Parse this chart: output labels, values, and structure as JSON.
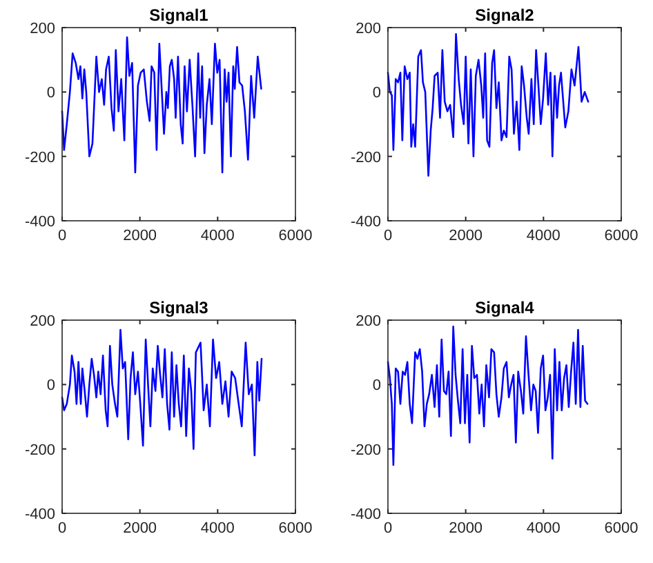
{
  "chart_data": [
    {
      "type": "line",
      "title": "Signal1",
      "xlim": [
        0,
        6000
      ],
      "xticks": [
        0,
        2000,
        4000,
        6000
      ],
      "ylim": [
        -400,
        200
      ],
      "yticks": [
        -400,
        -200,
        0,
        200
      ],
      "grid": false,
      "marker": "none",
      "line_style": "solid",
      "series": [
        {
          "color": "#0000ff",
          "x": [
            0,
            50,
            120,
            200,
            270,
            350,
            420,
            470,
            520,
            570,
            620,
            700,
            780,
            880,
            950,
            1020,
            1080,
            1130,
            1200,
            1270,
            1330,
            1380,
            1450,
            1520,
            1600,
            1670,
            1730,
            1800,
            1880,
            1950,
            2020,
            2100,
            2180,
            2250,
            2300,
            2370,
            2430,
            2500,
            2560,
            2620,
            2680,
            2720,
            2770,
            2820,
            2880,
            2920,
            2980,
            3050,
            3100,
            3150,
            3210,
            3280,
            3350,
            3420,
            3500,
            3550,
            3600,
            3660,
            3720,
            3790,
            3850,
            3930,
            3990,
            4050,
            4120,
            4180,
            4230,
            4280,
            4340,
            4400,
            4440,
            4500,
            4560,
            4630,
            4700,
            4780,
            4860,
            4940,
            5030,
            5120
          ],
          "values": [
            -60,
            -180,
            -100,
            0,
            120,
            90,
            40,
            80,
            -20,
            70,
            0,
            -200,
            -160,
            110,
            0,
            40,
            -40,
            70,
            110,
            -50,
            -120,
            130,
            -60,
            40,
            -150,
            170,
            50,
            90,
            -250,
            20,
            60,
            70,
            -30,
            -90,
            80,
            60,
            -180,
            150,
            10,
            -130,
            0,
            -50,
            80,
            100,
            40,
            -80,
            110,
            -100,
            -160,
            80,
            -60,
            100,
            -40,
            -200,
            120,
            -80,
            80,
            -190,
            -40,
            40,
            -100,
            150,
            60,
            100,
            -250,
            70,
            -30,
            60,
            -200,
            80,
            10,
            140,
            30,
            20,
            -60,
            -210,
            50,
            -80,
            110,
            10
          ]
        }
      ]
    },
    {
      "type": "line",
      "title": "Signal2",
      "xlim": [
        0,
        6000
      ],
      "xticks": [
        0,
        2000,
        4000,
        6000
      ],
      "ylim": [
        -400,
        200
      ],
      "yticks": [
        -400,
        -200,
        0,
        200
      ],
      "grid": false,
      "marker": "none",
      "line_style": "solid",
      "series": [
        {
          "color": "#0000ff",
          "x": [
            0,
            50,
            100,
            140,
            200,
            260,
            320,
            370,
            430,
            500,
            560,
            600,
            650,
            700,
            780,
            850,
            900,
            960,
            1040,
            1100,
            1150,
            1200,
            1280,
            1340,
            1400,
            1460,
            1530,
            1600,
            1680,
            1750,
            1820,
            1880,
            1950,
            2000,
            2070,
            2130,
            2200,
            2260,
            2330,
            2400,
            2450,
            2500,
            2550,
            2610,
            2680,
            2730,
            2790,
            2850,
            2920,
            2980,
            3050,
            3120,
            3180,
            3240,
            3310,
            3380,
            3440,
            3500,
            3570,
            3620,
            3690,
            3750,
            3810,
            3870,
            3930,
            3990,
            4060,
            4120,
            4180,
            4230,
            4290,
            4350,
            4400,
            4450,
            4560,
            4640,
            4720,
            4800,
            4900,
            4980,
            5060,
            5150
          ],
          "values": [
            60,
            0,
            -10,
            -180,
            40,
            30,
            60,
            -150,
            80,
            40,
            60,
            -170,
            -100,
            -170,
            110,
            130,
            30,
            0,
            -260,
            -120,
            -50,
            50,
            60,
            -80,
            130,
            -30,
            -60,
            -40,
            -140,
            180,
            40,
            -40,
            -100,
            110,
            -160,
            70,
            -200,
            50,
            100,
            20,
            -80,
            120,
            -150,
            -170,
            90,
            130,
            -50,
            30,
            -150,
            -120,
            -140,
            110,
            70,
            -130,
            -30,
            -180,
            80,
            20,
            -80,
            -130,
            40,
            -100,
            130,
            20,
            -100,
            -20,
            120,
            -40,
            60,
            -200,
            50,
            -80,
            20,
            60,
            -110,
            -60,
            70,
            20,
            140,
            -30,
            0,
            -30
          ]
        }
      ]
    },
    {
      "type": "line",
      "title": "Signal3",
      "xlim": [
        0,
        6000
      ],
      "xticks": [
        0,
        2000,
        4000,
        6000
      ],
      "ylim": [
        -400,
        200
      ],
      "yticks": [
        -400,
        -200,
        0,
        200
      ],
      "grid": false,
      "marker": "none",
      "line_style": "solid",
      "series": [
        {
          "color": "#0000ff",
          "x": [
            0,
            50,
            120,
            200,
            250,
            320,
            370,
            420,
            480,
            520,
            580,
            640,
            700,
            760,
            820,
            880,
            930,
            990,
            1050,
            1120,
            1170,
            1230,
            1290,
            1360,
            1420,
            1500,
            1560,
            1620,
            1700,
            1760,
            1820,
            1880,
            1950,
            2010,
            2080,
            2150,
            2210,
            2270,
            2330,
            2400,
            2460,
            2520,
            2580,
            2640,
            2700,
            2760,
            2820,
            2880,
            2940,
            3000,
            3060,
            3130,
            3190,
            3260,
            3320,
            3380,
            3440,
            3560,
            3640,
            3720,
            3800,
            3880,
            3960,
            4040,
            4120,
            4200,
            4280,
            4360,
            4450,
            4540,
            4620,
            4720,
            4800,
            4880,
            4950,
            5020,
            5070,
            5130
          ],
          "values": [
            -40,
            -80,
            -60,
            0,
            90,
            40,
            -60,
            70,
            -60,
            50,
            -20,
            -100,
            0,
            80,
            30,
            -40,
            40,
            -30,
            90,
            -80,
            -130,
            120,
            0,
            -60,
            -100,
            170,
            50,
            70,
            -170,
            20,
            100,
            -30,
            40,
            -60,
            -190,
            140,
            0,
            -130,
            50,
            -20,
            120,
            30,
            -40,
            110,
            -60,
            -140,
            100,
            -100,
            60,
            -60,
            -130,
            90,
            -160,
            50,
            -20,
            -200,
            100,
            130,
            -80,
            0,
            -130,
            140,
            20,
            70,
            -60,
            10,
            -100,
            40,
            20,
            -60,
            -130,
            130,
            -30,
            0,
            -220,
            70,
            -50,
            80
          ]
        }
      ]
    },
    {
      "type": "line",
      "title": "Signal4",
      "xlim": [
        0,
        6000
      ],
      "xticks": [
        0,
        2000,
        4000,
        6000
      ],
      "ylim": [
        -400,
        200
      ],
      "yticks": [
        -400,
        -200,
        0,
        200
      ],
      "grid": false,
      "marker": "none",
      "line_style": "solid",
      "series": [
        {
          "color": "#0000ff",
          "x": [
            0,
            50,
            100,
            140,
            200,
            260,
            320,
            380,
            440,
            500,
            560,
            620,
            700,
            760,
            820,
            880,
            940,
            1000,
            1060,
            1130,
            1200,
            1260,
            1320,
            1380,
            1440,
            1500,
            1560,
            1620,
            1680,
            1740,
            1800,
            1860,
            1920,
            1980,
            2040,
            2100,
            2160,
            2220,
            2290,
            2350,
            2410,
            2470,
            2530,
            2600,
            2660,
            2730,
            2790,
            2850,
            2920,
            2980,
            3050,
            3110,
            3170,
            3230,
            3290,
            3350,
            3420,
            3480,
            3550,
            3610,
            3680,
            3740,
            3800,
            3860,
            3930,
            3990,
            4050,
            4110,
            4170,
            4230,
            4290,
            4350,
            4410,
            4470,
            4530,
            4590,
            4650,
            4710,
            4770,
            4830,
            4890,
            4950,
            5010,
            5070,
            5130
          ],
          "values": [
            70,
            20,
            -60,
            -250,
            50,
            40,
            -60,
            40,
            30,
            70,
            -60,
            -120,
            100,
            80,
            110,
            40,
            -130,
            -60,
            -30,
            30,
            -70,
            60,
            -100,
            140,
            -20,
            -30,
            40,
            -160,
            180,
            30,
            -50,
            -120,
            110,
            -120,
            30,
            -180,
            120,
            20,
            30,
            -90,
            0,
            -130,
            60,
            -40,
            110,
            100,
            -30,
            -100,
            -40,
            50,
            70,
            -40,
            0,
            30,
            -180,
            40,
            -20,
            -90,
            150,
            40,
            -80,
            0,
            -20,
            -150,
            50,
            90,
            -80,
            -40,
            30,
            -230,
            110,
            -80,
            70,
            -80,
            20,
            60,
            -70,
            40,
            130,
            -60,
            170,
            -70,
            120,
            -50,
            -60
          ]
        }
      ]
    }
  ]
}
